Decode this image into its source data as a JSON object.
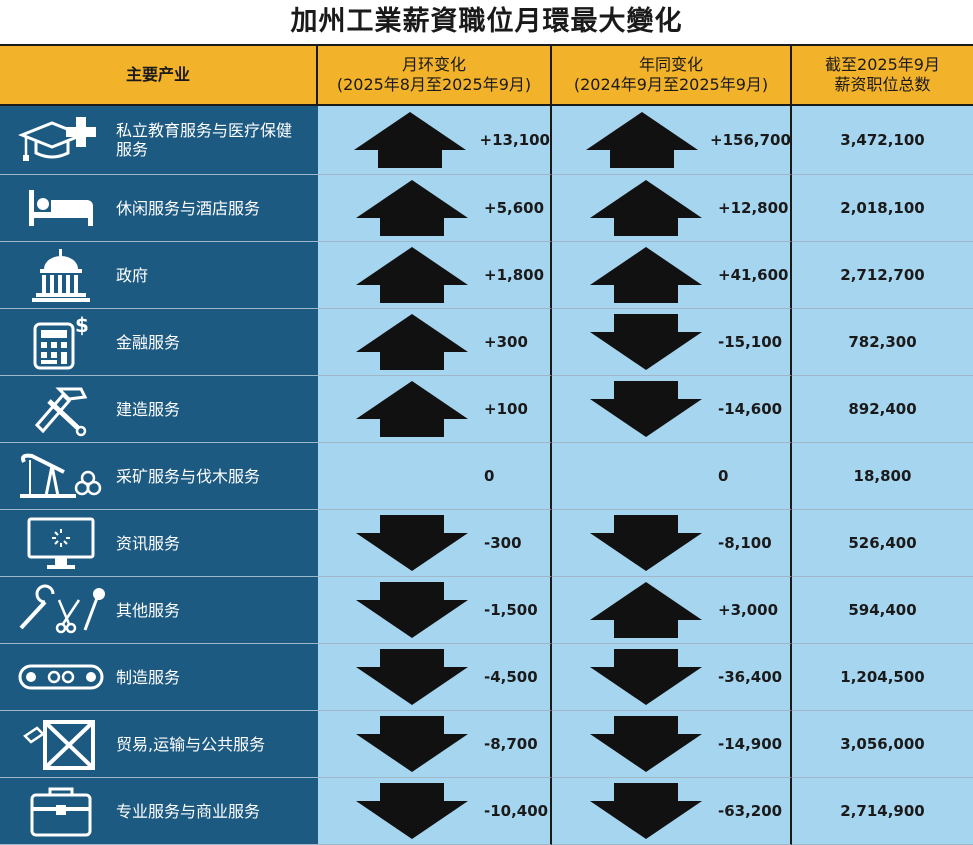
{
  "title": "加州工業薪資職位月環最大變化",
  "header": {
    "sector": "主要产业",
    "mom_line1": "月环变化",
    "mom_line2": "(2025年8月至2025年9月)",
    "yoy_line1": "年同变化",
    "yoy_line2": "(2024年9月至2025年9月)",
    "total_line1": "截至2025年9月",
    "total_line2": "薪资职位总数"
  },
  "rows": [
    {
      "icon": "education-health-icon",
      "name": "私立教育服务与医疗保健服务",
      "mom": "+13,100",
      "mom_dir": "up",
      "yoy": "+156,700",
      "yoy_dir": "up",
      "total": "3,472,100"
    },
    {
      "icon": "bed-icon",
      "name": "休闲服务与酒店服务",
      "mom": "+5,600",
      "mom_dir": "up",
      "yoy": "+12,800",
      "yoy_dir": "up",
      "total": "2,018,100"
    },
    {
      "icon": "capitol-icon",
      "name": "政府",
      "mom": "+1,800",
      "mom_dir": "up",
      "yoy": "+41,600",
      "yoy_dir": "up",
      "total": "2,712,700"
    },
    {
      "icon": "calculator-icon",
      "name": "金融服务",
      "mom": "+300",
      "mom_dir": "up",
      "yoy": "-15,100",
      "yoy_dir": "down",
      "total": "782,300"
    },
    {
      "icon": "tools-icon",
      "name": "建造服务",
      "mom": "+100",
      "mom_dir": "up",
      "yoy": "-14,600",
      "yoy_dir": "down",
      "total": "892,400"
    },
    {
      "icon": "oil-pump-icon",
      "name": "采矿服务与伐木服务",
      "mom": "0",
      "mom_dir": "none",
      "yoy": "0",
      "yoy_dir": "none",
      "total": "18,800"
    },
    {
      "icon": "monitor-icon",
      "name": "资讯服务",
      "mom": "-300",
      "mom_dir": "down",
      "yoy": "-8,100",
      "yoy_dir": "down",
      "total": "526,400"
    },
    {
      "icon": "wrench-scissors-icon",
      "name": "其他服务",
      "mom": "-1,500",
      "mom_dir": "down",
      "yoy": "+3,000",
      "yoy_dir": "up",
      "total": "594,400"
    },
    {
      "icon": "conveyor-icon",
      "name": "制造服务",
      "mom": "-4,500",
      "mom_dir": "down",
      "yoy": "-36,400",
      "yoy_dir": "down",
      "total": "1,204,500"
    },
    {
      "icon": "crate-icon",
      "name": "贸易,运输与公共服务",
      "mom": "-8,700",
      "mom_dir": "down",
      "yoy": "-14,900",
      "yoy_dir": "down",
      "total": "3,056,000"
    },
    {
      "icon": "toolbox-icon",
      "name": "专业服务与商业服务",
      "mom": "-10,400",
      "mom_dir": "down",
      "yoy": "-63,200",
      "yoy_dir": "down",
      "total": "2,714,900"
    }
  ],
  "colors": {
    "header_bg": "#f2b32a",
    "sector_bg": "#1d5a82",
    "cell_bg": "#a6d5f0",
    "arrow": "#111111"
  }
}
